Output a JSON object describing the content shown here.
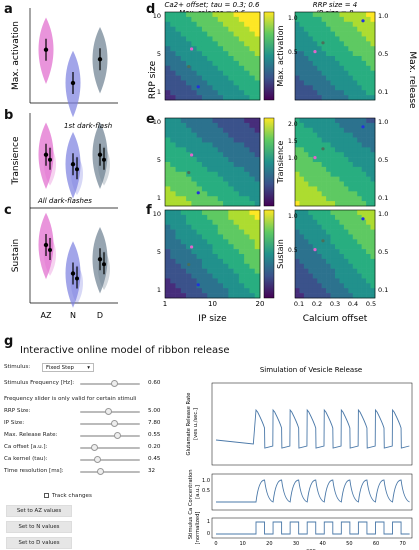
{
  "panels": {
    "a": "a",
    "b": "b",
    "c": "c",
    "d": "d",
    "e": "e",
    "f": "f",
    "g": "g"
  },
  "violins": {
    "ylabels": [
      "Max. activation",
      "Transience",
      "Sustain"
    ],
    "xticks": [
      "AZ",
      "N",
      "D"
    ],
    "annot_first": "1st dark-flash",
    "annot_all": "All dark-flashes",
    "colors": {
      "AZ": "#e066cc",
      "N": "#7b7fe0",
      "D": "#6b7f90"
    }
  },
  "heatmaps": {
    "left_title_1": "Ca2+ offset; tau = 0.3; 0.6",
    "left_title_2": "Max. release = 0.6",
    "right_title_1": "RRP size = 4",
    "right_title_2": "IP size = 8",
    "left_ylabel": "RRP size",
    "right_ylabel": "Max. release",
    "left_xlabel": "IP size",
    "right_xlabel": "Calcium offset",
    "left_xticks": [
      "1",
      "10",
      "20"
    ],
    "left_yticks": [
      "10",
      "5",
      "1"
    ],
    "right_xticks": [
      "0.1",
      "0.2",
      "0.3",
      "0.4",
      "0.5"
    ],
    "right_yticks": [
      "1.0",
      "0.5",
      "0.1"
    ],
    "cbar_labels": [
      "Max. activation",
      "Transience",
      "Sustain"
    ],
    "cbar_ticks": [
      [
        "1.0",
        "0.5"
      ],
      [
        "2.0",
        "1.5",
        "1.0"
      ],
      [
        "1.0",
        "0.5"
      ]
    ]
  },
  "model": {
    "title": "Interactive online model of ribbon release",
    "stimulus_label": "Stimulus:",
    "stimulus_value": "Fixed Step",
    "controls": [
      {
        "label": "Stimulus Frequency [Hz]:",
        "value": "0.60",
        "level": 0.55
      },
      {
        "label": "RRP Size:",
        "value": "5.00",
        "level": 0.45
      },
      {
        "label": "IP Size:",
        "value": "7.80",
        "level": 0.55
      },
      {
        "label": "Max. Release Rate:",
        "value": "0.55",
        "level": 0.6
      },
      {
        "label": "Ca offset [a.u.]:",
        "value": "0.20",
        "level": 0.2
      },
      {
        "label": "Ca kernel (tau):",
        "value": "0.45",
        "level": 0.25
      },
      {
        "label": "Time resolution [ms]:",
        "value": "32",
        "level": 0.3
      }
    ],
    "freq_note": "Frequency slider is only valid for certain stimuli",
    "track_label": "Track changes",
    "buttons": [
      "Set to AZ values",
      "Set to N values",
      "Set to D values"
    ],
    "sim_title": "Simulation of Vesicle Release",
    "sim_ylabels": [
      "Glutamate Release Rate [ves u./sec.]",
      "Ca Concentration [a.u.]",
      "Stimulus [normalized]"
    ],
    "sim_xlabel": "sec",
    "sim_xticks": [
      "0",
      "10",
      "20",
      "30",
      "40",
      "50",
      "60",
      "70"
    ],
    "ca_yticks": [
      "1.0",
      "0.5"
    ],
    "stim_yticks": [
      "1",
      "0"
    ]
  }
}
